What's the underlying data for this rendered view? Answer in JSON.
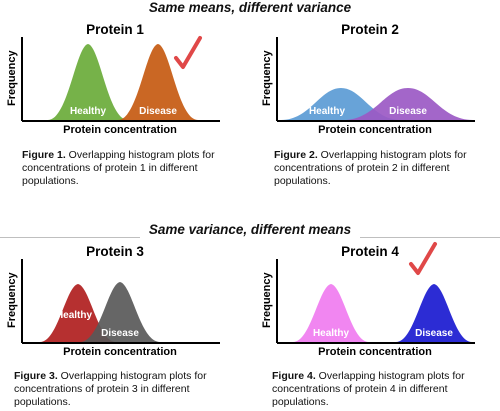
{
  "sections": [
    {
      "title": "Same means, different variance"
    },
    {
      "title": "Same variance, different means"
    }
  ],
  "axis": {
    "ylabel": "Frequency",
    "xlabel": "Protein concentration"
  },
  "panels": [
    {
      "title": "Protein 1",
      "healthy_label": "Healthy",
      "disease_label": "Disease",
      "healthy_color": "#6aab3a",
      "disease_color": "#c55a11",
      "checkmark": true,
      "caption_bold": "Figure 1.",
      "caption_text": " Overlapping histogram plots for concentrations of protein 1 in different populations."
    },
    {
      "title": "Protein 2",
      "healthy_label": "Healthy",
      "disease_label": "Disease",
      "healthy_color": "#5b9bd5",
      "disease_color": "#9b59c4",
      "checkmark": false,
      "caption_bold": "Figure 2.",
      "caption_text": " Overlapping histogram plots for concentrations of protein 2 in different populations."
    },
    {
      "title": "Protein 3",
      "healthy_label": "Healthy",
      "disease_label": "Disease",
      "healthy_color": "#b01e1e",
      "disease_color": "#595959",
      "checkmark": false,
      "caption_bold": "Figure 3.",
      "caption_text": " Overlapping histogram plots for concentrations of protein 3 in different populations."
    },
    {
      "title": "Protein 4",
      "healthy_label": "Healthy",
      "disease_label": "Disease",
      "healthy_color": "#f07cf0",
      "disease_color": "#1a1ad0",
      "checkmark": true,
      "caption_bold": "Figure 4.",
      "caption_text": " Overlapping histogram plots for concentrations of protein 4 in different populations."
    }
  ],
  "checkmark_color": "#e04848"
}
